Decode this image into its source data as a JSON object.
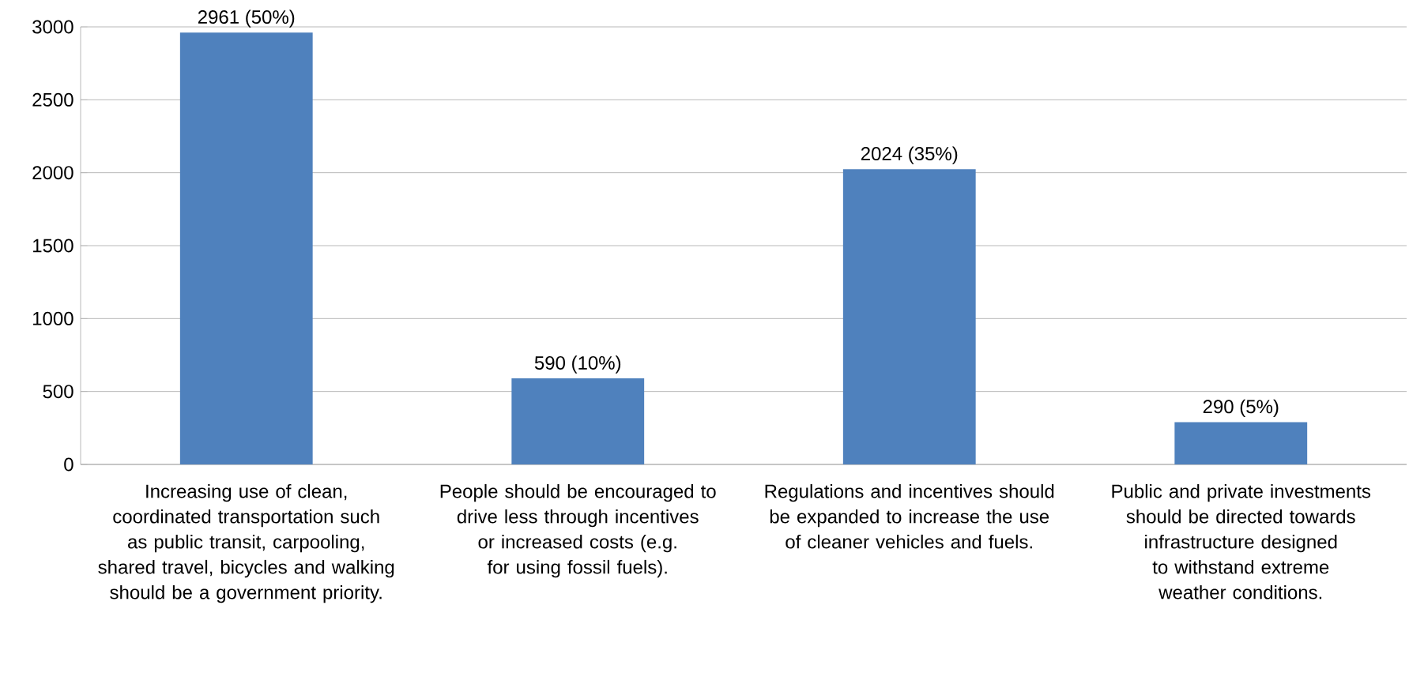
{
  "chart_data": {
    "type": "bar",
    "categories": [
      "Increasing use of clean, coordinated transportation such as public transit, carpooling, shared travel, bicycles and walking should be a government priority.",
      "People should be encouraged to drive less through incentives or increased costs (e.g. for using fossil fuels).",
      "Regulations and incentives should be expanded to increase the use of cleaner vehicles and fuels.",
      "Public and private investments should be directed towards infrastructure designed to withstand extreme weather conditions."
    ],
    "values": [
      2961,
      590,
      2024,
      290
    ],
    "value_labels": [
      "2961 (50%)",
      "590 (10%)",
      "2024 (35%)",
      "290 (5%)"
    ],
    "color": "#4f81bd",
    "ylim": [
      0,
      3000
    ],
    "yticks": [
      0,
      500,
      1000,
      1500,
      2000,
      2500,
      3000
    ],
    "grid": "y"
  }
}
